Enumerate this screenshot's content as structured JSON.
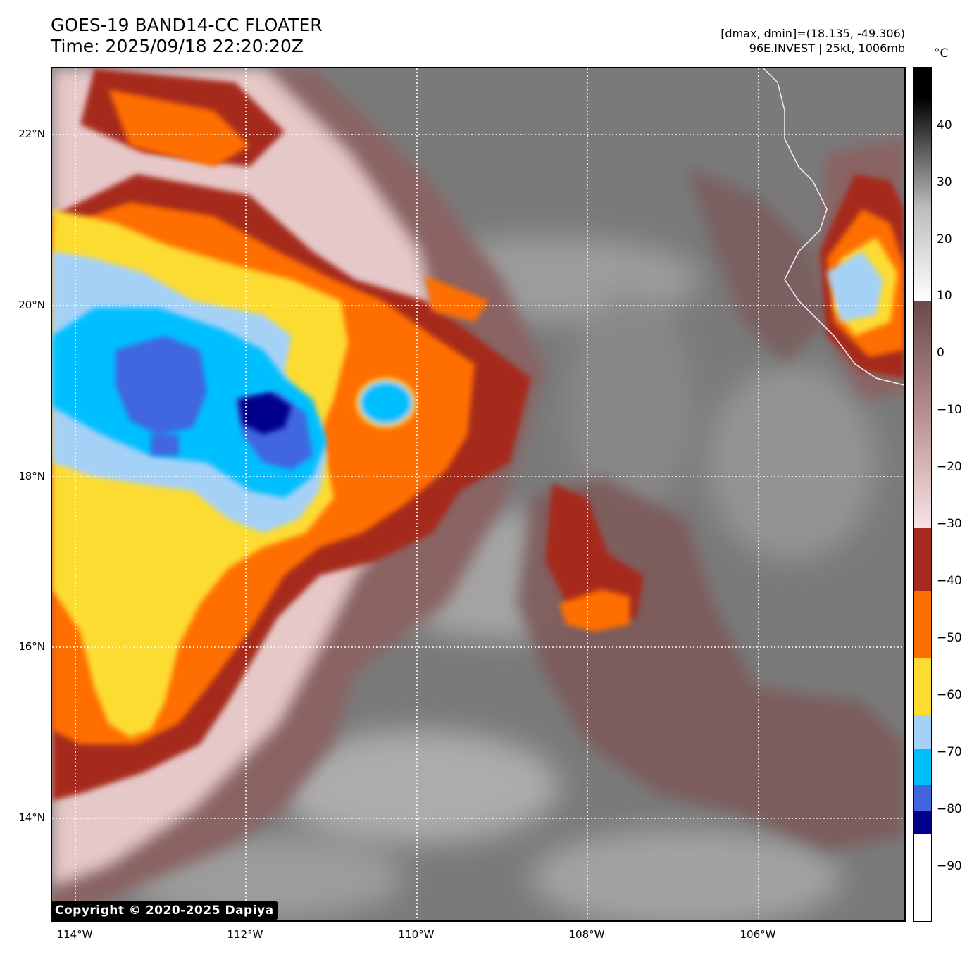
{
  "header": {
    "title_line1": "GOES-19 BAND14-CC FLOATER",
    "title_line2": "Time: 2025/09/18 22:20:20Z",
    "info_line1": "[dmax, dmin]=(18.135, -49.306)",
    "info_line2": "96E.INVEST | 25kt, 1006mb"
  },
  "map": {
    "lat_labels": [
      "22°N",
      "20°N",
      "18°N",
      "16°N",
      "14°N"
    ],
    "lon_labels": [
      "114°W",
      "112°W",
      "110°W",
      "108°W",
      "106°W"
    ],
    "copyright": "Copyright © 2020-2025 Dapiya"
  },
  "colorbar": {
    "unit": "°C",
    "ticks": [
      "40",
      "30",
      "20",
      "10",
      "0",
      "−10",
      "−20",
      "−30",
      "−40",
      "−50",
      "−60",
      "−70",
      "−80",
      "−90"
    ],
    "colors": {
      "black": "#000000",
      "gray_dark": "#3a3a3a",
      "gray_mid": "#8a8a8a",
      "gray_light": "#d8d8d8",
      "brown": "#6b4a4a",
      "pink": "#f2d9d9",
      "dark_red": "#a52a1f",
      "orange": "#ff6e00",
      "yellow": "#fddc32",
      "light_blue": "#a6d1f7",
      "cyan": "#00bfff",
      "royal_blue": "#4166e0",
      "navy": "#00008b",
      "white": "#ffffff"
    }
  }
}
